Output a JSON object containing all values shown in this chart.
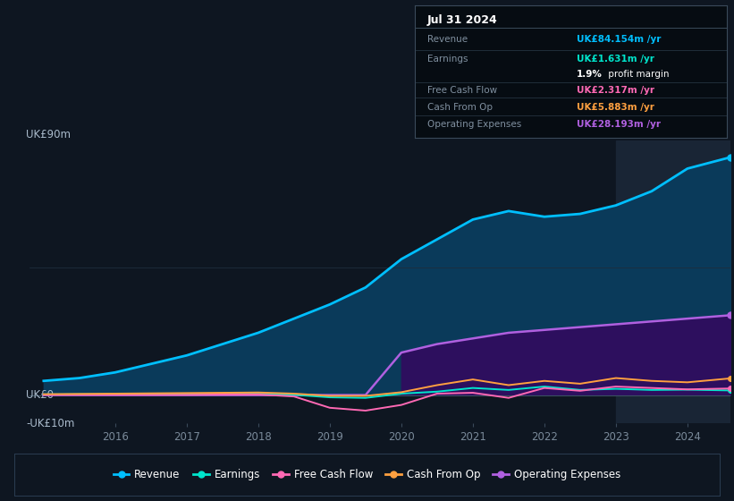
{
  "bg_color": "#0e1621",
  "plot_bg_color": "#0e1621",
  "grid_color": "#1e2d3d",
  "years": [
    2015.0,
    2015.5,
    2016.0,
    2016.5,
    2017.0,
    2017.5,
    2018.0,
    2018.5,
    2019.0,
    2019.5,
    2020.0,
    2020.5,
    2021.0,
    2021.5,
    2022.0,
    2022.5,
    2023.0,
    2023.5,
    2024.0,
    2024.6
  ],
  "revenue": [
    5,
    6,
    8,
    11,
    14,
    18,
    22,
    27,
    32,
    38,
    48,
    55,
    62,
    65,
    63,
    64,
    67,
    72,
    80,
    84
  ],
  "earnings": [
    0.2,
    0.3,
    0.3,
    0.4,
    0.4,
    0.5,
    0.5,
    0.1,
    -0.8,
    -1.0,
    0.5,
    1.2,
    2.5,
    1.8,
    3.0,
    1.8,
    2.2,
    1.8,
    1.9,
    1.631
  ],
  "free_cash_flow": [
    0.1,
    0.1,
    0.1,
    0.1,
    0.1,
    0.2,
    0.2,
    -0.5,
    -4.5,
    -5.5,
    -3.5,
    0.5,
    0.8,
    -1.0,
    2.5,
    1.5,
    3.0,
    2.5,
    2.0,
    2.317
  ],
  "cash_from_op": [
    0.3,
    0.4,
    0.5,
    0.6,
    0.7,
    0.8,
    0.9,
    0.5,
    -0.3,
    -0.3,
    1.0,
    3.5,
    5.5,
    3.5,
    5.0,
    4.0,
    6.0,
    5.0,
    4.5,
    5.883
  ],
  "operating_expenses": [
    0,
    0,
    0,
    0,
    0,
    0,
    0,
    0,
    0,
    0,
    15,
    18,
    20,
    22,
    23,
    24,
    25,
    26,
    27,
    28.193
  ],
  "ylim": [
    -10,
    90
  ],
  "shaded_start": 2023.0,
  "revenue_color": "#00bfff",
  "revenue_fill": "#0a3a5a",
  "earnings_color": "#00e5cc",
  "free_cash_flow_color": "#ff69b4",
  "cash_from_op_color": "#ffa040",
  "operating_expenses_color": "#b060e0",
  "operating_expenses_fill": "#2d0f5e",
  "info_box": {
    "date": "Jul 31 2024",
    "revenue_label": "Revenue",
    "revenue_value": "UK£84.154m",
    "revenue_color": "#00bfff",
    "earnings_label": "Earnings",
    "earnings_value": "UK£1.631m",
    "earnings_color": "#00e5cc",
    "margin_pct": "1.9%",
    "margin_rest": " profit margin",
    "fcf_label": "Free Cash Flow",
    "fcf_value": "UK£2.317m",
    "fcf_color": "#ff69b4",
    "cfop_label": "Cash From Op",
    "cfop_value": "UK£5.883m",
    "cfop_color": "#ffa040",
    "opex_label": "Operating Expenses",
    "opex_value": "UK£28.193m",
    "opex_color": "#b060e0"
  },
  "legend_items": [
    {
      "label": "Revenue",
      "color": "#00bfff"
    },
    {
      "label": "Earnings",
      "color": "#00e5cc"
    },
    {
      "label": "Free Cash Flow",
      "color": "#ff69b4"
    },
    {
      "label": "Cash From Op",
      "color": "#ffa040"
    },
    {
      "label": "Operating Expenses",
      "color": "#b060e0"
    }
  ],
  "xticks": [
    2016,
    2017,
    2018,
    2019,
    2020,
    2021,
    2022,
    2023,
    2024
  ],
  "xtick_labels": [
    "2016",
    "2017",
    "2018",
    "2019",
    "2020",
    "2021",
    "2022",
    "2023",
    "2024"
  ]
}
